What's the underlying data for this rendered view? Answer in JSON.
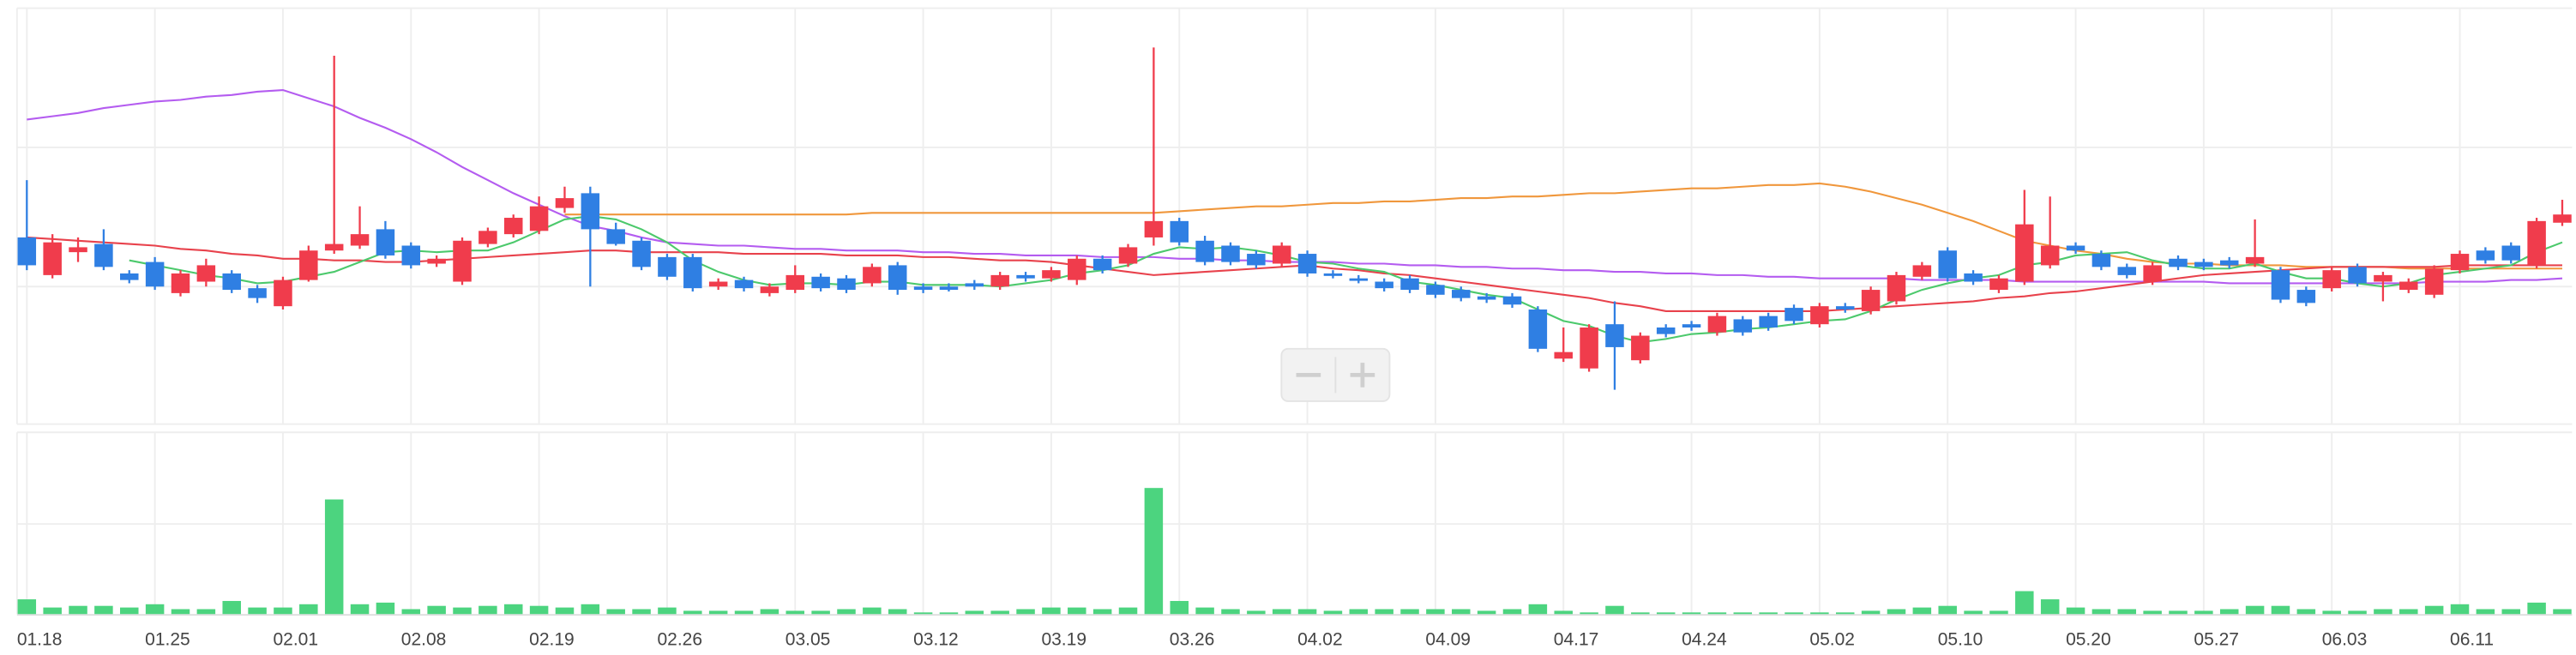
{
  "chart_data": [
    {
      "type": "candlestick",
      "categories": [
        "01.18",
        null,
        null,
        null,
        null,
        "01.25",
        null,
        null,
        null,
        null,
        "02.01",
        null,
        null,
        null,
        null,
        "02.08",
        null,
        null,
        null,
        null,
        "02.19",
        null,
        null,
        null,
        null,
        "02.26",
        null,
        null,
        null,
        null,
        "03.05",
        null,
        null,
        null,
        null,
        "03.12",
        null,
        null,
        null,
        null,
        "03.19",
        null,
        null,
        null,
        null,
        "03.26",
        null,
        null,
        null,
        null,
        "04.02",
        null,
        null,
        null,
        null,
        "04.09",
        null,
        null,
        null,
        null,
        "04.17",
        null,
        null,
        null,
        null,
        "04.24",
        null,
        null,
        null,
        null,
        "05.02",
        null,
        null,
        null,
        null,
        "05.10",
        null,
        null,
        null,
        null,
        "05.20",
        null,
        null,
        null,
        null,
        "05.27",
        null,
        null,
        null,
        null,
        "06.03",
        null,
        null,
        null,
        null,
        "06.11",
        null,
        null,
        null,
        null
      ],
      "open": [
        115,
        92,
        106,
        111,
        93,
        100,
        81,
        88,
        93,
        84,
        73,
        89,
        107,
        110,
        120,
        110,
        99,
        88,
        111,
        117,
        119,
        133,
        142,
        120,
        113,
        103,
        103,
        85,
        89,
        81,
        83,
        91,
        90,
        87,
        98,
        85,
        85,
        87,
        85,
        92,
        90,
        89,
        102,
        99,
        115,
        125,
        113,
        110,
        105,
        99,
        105,
        93,
        90,
        88,
        90,
        86,
        83,
        79,
        79,
        71,
        41,
        35,
        62,
        40,
        60,
        62,
        57,
        65,
        67,
        72,
        62,
        73,
        70,
        76,
        91,
        107,
        93,
        83,
        88,
        98,
        110,
        105,
        97,
        88,
        102,
        100,
        101,
        99,
        95,
        83,
        84,
        97,
        88,
        83,
        80,
        95,
        107,
        110,
        98,
        124
      ],
      "high": [
        150,
        117,
        115,
        120,
        95,
        103,
        95,
        102,
        95,
        86,
        91,
        110,
        226,
        134,
        125,
        112,
        104,
        115,
        121,
        129,
        140,
        146,
        146,
        124,
        115,
        105,
        105,
        90,
        91,
        87,
        98,
        93,
        92,
        99,
        100,
        87,
        87,
        89,
        94,
        94,
        97,
        104,
        104,
        111,
        231,
        127,
        116,
        112,
        107,
        112,
        107,
        95,
        92,
        90,
        92,
        88,
        85,
        81,
        81,
        73,
        60,
        62,
        76,
        57,
        62,
        64,
        69,
        67,
        69,
        74,
        75,
        75,
        85,
        94,
        100,
        109,
        95,
        92,
        144,
        140,
        112,
        107,
        99,
        100,
        104,
        102,
        103,
        126,
        97,
        85,
        97,
        99,
        94,
        90,
        98,
        107,
        109,
        112,
        127,
        138
      ],
      "low": [
        95,
        90,
        100,
        95,
        87,
        83,
        79,
        85,
        81,
        75,
        71,
        88,
        105,
        108,
        102,
        96,
        97,
        86,
        109,
        115,
        117,
        130,
        85,
        110,
        95,
        89,
        82,
        83,
        82,
        79,
        81,
        82,
        81,
        85,
        80,
        81,
        82,
        83,
        83,
        88,
        88,
        86,
        93,
        97,
        110,
        110,
        98,
        98,
        96,
        97,
        91,
        90,
        87,
        82,
        81,
        78,
        76,
        75,
        72,
        45,
        39,
        33,
        22,
        38,
        54,
        58,
        55,
        55,
        58,
        62,
        60,
        69,
        68,
        74,
        89,
        88,
        86,
        81,
        86,
        96,
        105,
        95,
        90,
        86,
        95,
        95,
        96,
        97,
        75,
        73,
        82,
        85,
        76,
        81,
        78,
        93,
        99,
        99,
        96,
        122
      ],
      "close": [
        98,
        112,
        109,
        97,
        89,
        85,
        93,
        98,
        83,
        78,
        89,
        107,
        111,
        117,
        104,
        98,
        102,
        113,
        119,
        127,
        134,
        139,
        120,
        111,
        97,
        91,
        84,
        88,
        84,
        85,
        92,
        84,
        83,
        97,
        83,
        83,
        83,
        85,
        92,
        90,
        95,
        102,
        95,
        109,
        125,
        112,
        100,
        100,
        98,
        110,
        93,
        92,
        89,
        84,
        83,
        80,
        78,
        77,
        74,
        47,
        45,
        60,
        48,
        55,
        56,
        60,
        67,
        57,
        60,
        64,
        73,
        71,
        83,
        92,
        98,
        90,
        88,
        90,
        123,
        110,
        107,
        97,
        92,
        98,
        97,
        97,
        98,
        103,
        77,
        75,
        95,
        87,
        92,
        88,
        96,
        105,
        101,
        101,
        125,
        129
      ],
      "up_color": "#f03c4c",
      "down_color": "#2f7fe3",
      "ylim": [
        0,
        260
      ],
      "lines": [
        {
          "color": "#b45cf0",
          "values": [
            187,
            189,
            191,
            194,
            196,
            198,
            199,
            201,
            202,
            204,
            205,
            200,
            195,
            188,
            182,
            175,
            167,
            158,
            150,
            142,
            135,
            128,
            122,
            119,
            115,
            112,
            111,
            110,
            110,
            109,
            108,
            108,
            107,
            107,
            107,
            106,
            106,
            105,
            105,
            104,
            104,
            104,
            103,
            103,
            103,
            102,
            102,
            101,
            101,
            100,
            100,
            100,
            99,
            99,
            98,
            98,
            97,
            97,
            96,
            96,
            95,
            95,
            94,
            94,
            93,
            93,
            92,
            92,
            91,
            91,
            90,
            90,
            90,
            90,
            89,
            89,
            89,
            89,
            88,
            88,
            88,
            88,
            88,
            88,
            88,
            88,
            87,
            87,
            87,
            87,
            87,
            87,
            87,
            87,
            88,
            88,
            88,
            89,
            89,
            90
          ]
        },
        {
          "color": "#f0973c",
          "values": [
            null,
            null,
            null,
            null,
            null,
            null,
            null,
            null,
            null,
            null,
            null,
            null,
            null,
            null,
            null,
            null,
            null,
            null,
            null,
            null,
            null,
            129,
            129,
            129,
            129,
            129,
            129,
            129,
            129,
            129,
            129,
            129,
            129,
            130,
            130,
            130,
            130,
            130,
            130,
            130,
            130,
            130,
            130,
            130,
            130,
            131,
            132,
            133,
            134,
            134,
            135,
            136,
            136,
            137,
            137,
            138,
            139,
            139,
            140,
            140,
            141,
            142,
            142,
            143,
            144,
            145,
            145,
            146,
            147,
            147,
            148,
            146,
            143,
            139,
            135,
            130,
            125,
            119,
            113,
            110,
            107,
            105,
            102,
            100,
            99,
            99,
            98,
            98,
            98,
            97,
            97,
            97,
            97,
            96,
            96,
            96,
            96,
            96,
            96,
            96
          ]
        },
        {
          "color": "#e8424c",
          "values": [
            115,
            114,
            113,
            112,
            111,
            110,
            108,
            107,
            105,
            104,
            102,
            102,
            101,
            101,
            100,
            100,
            101,
            102,
            103,
            104,
            105,
            106,
            107,
            107,
            106,
            106,
            106,
            106,
            105,
            105,
            105,
            105,
            104,
            104,
            104,
            103,
            103,
            102,
            101,
            101,
            100,
            98,
            96,
            94,
            92,
            93,
            94,
            95,
            96,
            97,
            98,
            96,
            95,
            93,
            92,
            90,
            88,
            86,
            84,
            82,
            80,
            78,
            75,
            73,
            70,
            70,
            70,
            70,
            70,
            70,
            70,
            71,
            72,
            73,
            74,
            75,
            76,
            78,
            79,
            81,
            82,
            84,
            86,
            88,
            90,
            92,
            93,
            94,
            95,
            96,
            97,
            97,
            97,
            97,
            97,
            98,
            98,
            98,
            98,
            98
          ]
        },
        {
          "color": "#4cc96c",
          "values": [
            null,
            null,
            null,
            null,
            101,
            98,
            95,
            92,
            90,
            87,
            88,
            91,
            94,
            100,
            106,
            107,
            106,
            107,
            107,
            112,
            119,
            126,
            128,
            126,
            120,
            112,
            101,
            94,
            89,
            86,
            87,
            87,
            86,
            88,
            88,
            86,
            86,
            86,
            85,
            87,
            89,
            93,
            95,
            98,
            105,
            109,
            108,
            109,
            107,
            104,
            100,
            99,
            96,
            94,
            88,
            86,
            83,
            80,
            78,
            71,
            64,
            61,
            55,
            51,
            53,
            56,
            57,
            59,
            60,
            62,
            64,
            65,
            70,
            77,
            83,
            87,
            90,
            92,
            98,
            100,
            104,
            105,
            106,
            101,
            98,
            96,
            96,
            99,
            94,
            90,
            90,
            87,
            85,
            87,
            92,
            94,
            96,
            98,
            106,
            112
          ]
        }
      ]
    },
    {
      "type": "bar",
      "values": [
        9,
        4,
        5,
        5,
        4,
        6,
        3,
        3,
        8,
        4,
        4,
        6,
        70,
        6,
        7,
        3,
        5,
        4,
        5,
        6,
        5,
        4,
        6,
        3,
        3,
        4,
        2,
        2,
        2,
        3,
        2,
        2,
        3,
        4,
        3,
        1,
        1,
        2,
        2,
        3,
        4,
        4,
        3,
        4,
        77,
        8,
        4,
        3,
        2,
        3,
        3,
        2,
        3,
        3,
        3,
        3,
        3,
        2,
        3,
        6,
        2,
        1,
        5,
        1,
        1,
        1,
        1,
        1,
        1,
        1,
        1,
        1,
        2,
        3,
        4,
        5,
        2,
        2,
        14,
        9,
        4,
        3,
        3,
        2,
        2,
        2,
        3,
        5,
        5,
        3,
        2,
        2,
        3,
        3,
        5,
        6,
        3,
        3,
        7,
        3
      ],
      "color": "#4cd47f",
      "ylim": [
        0,
        113
      ]
    }
  ]
}
